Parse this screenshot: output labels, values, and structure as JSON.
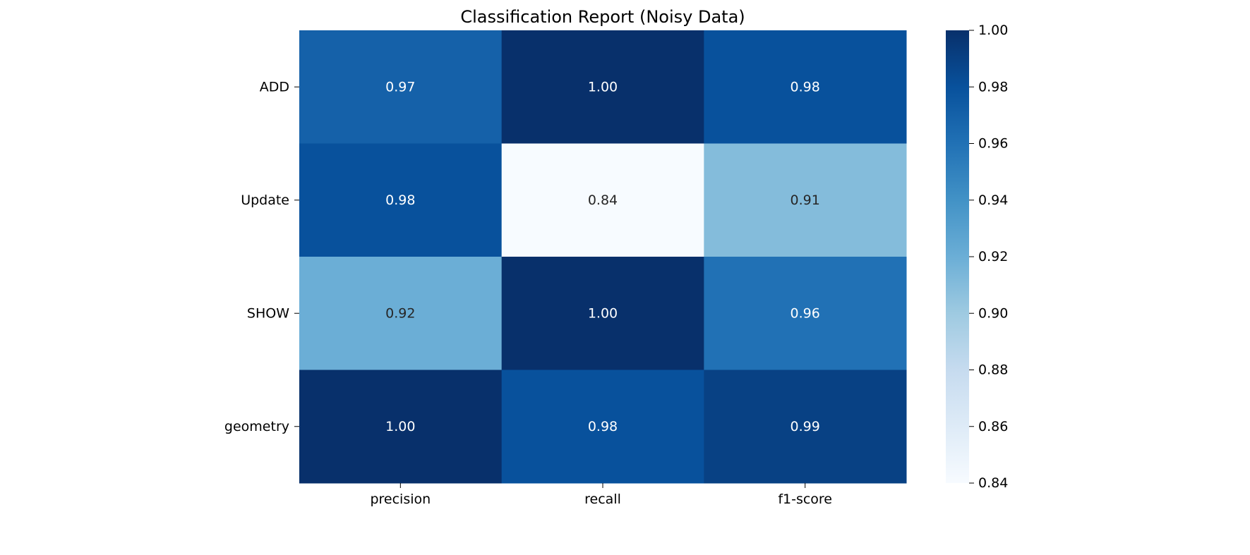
{
  "chart_data": {
    "type": "heatmap",
    "title": "Classification Report (Noisy Data)",
    "rows": [
      "ADD",
      "Update",
      "SHOW",
      "geometry"
    ],
    "columns": [
      "precision",
      "recall",
      "f1-score"
    ],
    "values": [
      [
        0.97,
        1.0,
        0.98
      ],
      [
        0.98,
        0.84,
        0.91
      ],
      [
        0.92,
        1.0,
        0.96
      ],
      [
        1.0,
        0.98,
        0.99
      ]
    ],
    "value_labels": [
      [
        "0.97",
        "1.00",
        "0.98"
      ],
      [
        "0.98",
        "0.84",
        "0.91"
      ],
      [
        "0.92",
        "1.00",
        "0.96"
      ],
      [
        "1.00",
        "0.98",
        "0.99"
      ]
    ],
    "colormap": "Blues",
    "colorbar": {
      "range": [
        0.84,
        1.0
      ],
      "ticks": [
        "0.84",
        "0.86",
        "0.88",
        "0.90",
        "0.92",
        "0.94",
        "0.96",
        "0.98",
        "1.00"
      ]
    },
    "xlabel": "",
    "ylabel": ""
  },
  "colors": {
    "blues_scale": [
      "#f7fbff",
      "#deebf7",
      "#c6dbef",
      "#9ecae1",
      "#6baed6",
      "#4292c6",
      "#2171b5",
      "#08519c",
      "#08306b"
    ],
    "annotation_light": "#ffffff",
    "annotation_dark": "#262626"
  }
}
